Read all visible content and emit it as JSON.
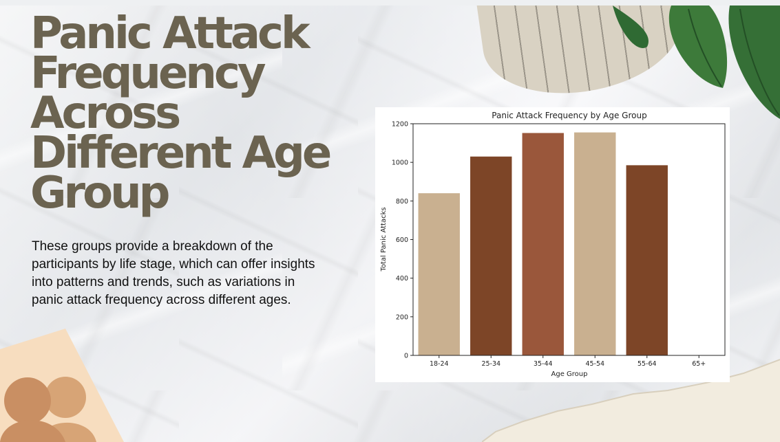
{
  "slide": {
    "title": "Panic Attack Frequency Across Different Age Group",
    "description": "These groups provide a breakdown of the participants by life stage, which can offer insights into patterns and trends, such as variations in panic attack frequency across different ages."
  },
  "decorations": {
    "icons": [
      "newspaper-scrap-icon",
      "green-leaves-icon",
      "torn-paper-icon",
      "human-silhouettes-icon"
    ],
    "colors": {
      "title": "#6b6350",
      "leaf": "#3d7a3a",
      "paper": "#f2ecdf",
      "silhouette": "#c98f63"
    }
  },
  "chart_data": {
    "type": "bar",
    "title": "Panic Attack Frequency by Age Group",
    "xlabel": "Age Group",
    "ylabel": "Total Panic Attacks",
    "categories": [
      "18-24",
      "25-34",
      "35-44",
      "45-54",
      "55-64",
      "65+"
    ],
    "values": [
      840,
      1030,
      1152,
      1155,
      985,
      0
    ],
    "colors": [
      "#c9b090",
      "#7d4527",
      "#9a573b",
      "#c9b090",
      "#7d4527",
      "#c9b090"
    ],
    "ylim": [
      0,
      1200
    ],
    "yticks": [
      0,
      200,
      400,
      600,
      800,
      1000,
      1200
    ],
    "grid": false,
    "legend": "none"
  }
}
